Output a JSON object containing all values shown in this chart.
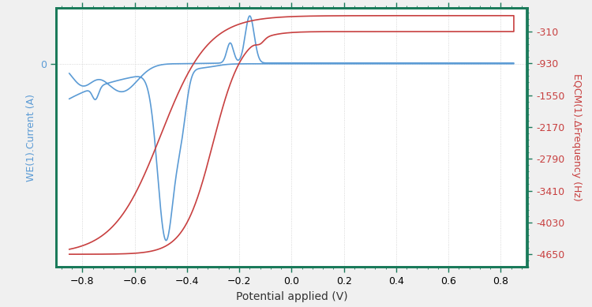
{
  "bg_color": "#f0f0f0",
  "plot_bg_color": "#ffffff",
  "blue_color": "#5b9bd5",
  "red_color": "#c84040",
  "grid_major_color": "#cccccc",
  "border_color": "#1a7a5a",
  "xlabel": "Potential applied (V)",
  "ylabel_left": "WE(1).Current (A)",
  "ylabel_right": "EQCM(1).ΔFrequency (Hz)",
  "xlim": [
    -0.9,
    0.9
  ],
  "ylim_left": [
    -0.00058,
    0.00016
  ],
  "ylim_right": [
    -4900,
    155
  ],
  "right_ticks": [
    -310.0,
    -930.0,
    -1550.0,
    -2170.0,
    -2790.0,
    -3410.0,
    -4030.0,
    -4650.0
  ],
  "xticks": [
    -0.8,
    -0.6,
    -0.4,
    -0.2,
    0.0,
    0.2,
    0.4,
    0.6,
    0.8
  ],
  "xlabel_fontsize": 10,
  "ylabel_fontsize": 9,
  "tick_fontsize": 9
}
